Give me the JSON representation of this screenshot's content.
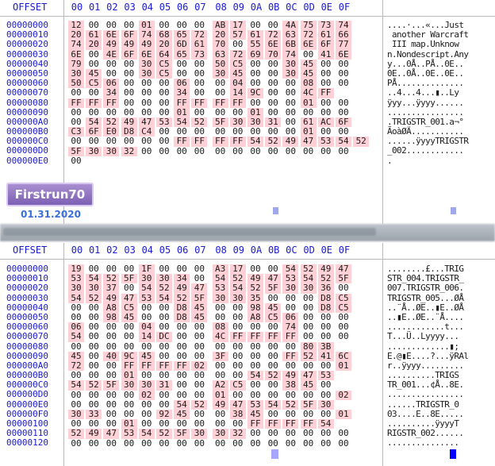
{
  "columns": {
    "offset_label": "OFFSET",
    "hex": [
      "00",
      "01",
      "02",
      "03",
      "04",
      "05",
      "06",
      "07",
      "08",
      "09",
      "0A",
      "0B",
      "0C",
      "0D",
      "0E",
      "0F"
    ]
  },
  "badge": {
    "text": "Firstrun70"
  },
  "date": "01.31.2020",
  "panels": [
    {
      "offsets": [
        "00000000",
        "00000010",
        "00000020",
        "00000030",
        "00000040",
        "00000050",
        "00000060",
        "00000070",
        "00000080",
        "00000090",
        "000000A0",
        "000000B0",
        "000000C0",
        "000000D0",
        "000000E0"
      ],
      "hex_rows": [
        "12 00 00 00 01 00 00 00 AB 17 00 00 4A 75 73 74",
        "20 61 6E 6F 74 68 65 72 20 57 61 72 63 72 61 66",
        "74 20 49 49 49 20 6D 61 70 00 55 6E 6B 6E 6F 77",
        "6E 00 4E 6F 6E 64 65 73 63 72 69 70 74 00 41 6E",
        "79 00 00 00 30 C5 00 00 50 C5 00 00 30 45 00 00",
        "30 45 00 00 30 C5 00 00 30 45 00 00 30 45 00 00",
        "50 C5 06 00 00 00 06 00 00 04 00 00 00 08 00 00",
        "00 00 34 00 00 00 34 00 00 14 9C 00 00 4C FF",
        "FF FF FF 00 00 00 FF FF FF FF 00 00 00 01 00 00",
        "00 00 00 00 00 00 01 00 00 00 01 00 00 00 00 00",
        "00 54 52 49 47 53 54 52 5F 30 30 31 00 61 AC 6F",
        "C3 6F E0 D8 C4 00 00 00 00 00 00 00 00 01 00 00",
        "00 00 00 00 00 00 FF FF FF FF 54 52 49 47 53 54 52",
        "5F 30 30 32 00 00 00 00 00 00 00 00 00 00 00 00",
        "00"
      ],
      "ascii_rows": [
        "....·...«...Just",
        " another Warcraft",
        " III map.Unknow",
        "n.Nondescript.Any",
        "y...0Å..PÅ..0E..",
        "0E..0Å..0E..0E..",
        "PÅ..............",
        "..4...4...▮..Ly",
        "ÿyy...ÿyyy......",
        "................",
        ".TRIGSTR_001.a¬°",
        "ÃoàØÄ...........",
        "......ÿyyyTRIGSTR",
        "_002............",
        "."
      ]
    },
    {
      "offsets": [
        "00000000",
        "00000010",
        "00000020",
        "00000030",
        "00000040",
        "00000050",
        "00000060",
        "00000070",
        "00000080",
        "00000090",
        "000000A0",
        "000000B0",
        "000000C0",
        "000000D0",
        "000000E0",
        "000000F0",
        "00000100",
        "00000110",
        "00000120"
      ],
      "hex_rows": [
        "19 00 00 00 1F 00 00 00 A3 17 00 00 54 52 49 47",
        "53 54 52 5F 30 30 34 00 54 52 49 47 53 54 52 5F",
        "30 30 37 00 54 52 49 47 53 54 52 5F 30 30 36 00",
        "54 52 49 47 53 54 52 5F 30 30 35 00 00 00 D8 C5",
        "00 00 A8 C5 00 00 D8 45 00 00 98 45 00 00 D8 C5",
        "00 00 98 45 00 00 D8 45 00 00 A8 C5 06 00 00 00",
        "06 00 00 00 04 00 00 00 08 00 00 00 74 00 00 00",
        "54 00 00 00 14 DC 00 00 4C FF FF FF FF 00 00 00",
        "00 00 00 00 00 00 00 00 00 00 00 00 00 80 3B",
        "45 00 40 9C 45 00 00 00 3F 00 00 00 FF 52 41 6C",
        "72 00 00 FF FF FF FF 02 00 00 00 00 00 00 00 01",
        "00 00 00 01 00 00 00 00 00 00 54 52 49 47 53",
        "54 52 5F 30 30 31 00 00 A2 C5 00 00 38 45 00",
        "00 00 00 00 02 00 00 00 01 00 00 00 00 00 00 02",
        "00 00 00 00 00 00 54 52 49 47 53 54 52 5F 30",
        "30 33 00 00 00 92 45 00 00 38 45 00 00 00 00 01",
        "00 00 00 01 00 00 00 00 00 00 FF FF FF FF 54",
        "52 49 47 53 54 52 5F 30 30 32 00 00 00 00 00 00",
        "00 00 00 00 00 00 00 00 00 00 00 00 00 00 00 00"
      ],
      "ascii_rows": [
        "........£...TRIG",
        "STR_004.TRIGSTR_",
        "007.TRIGSTR_006.",
        "TRIGSTR_005...ØÅ",
        "..¨Å..ØE..▮E..ØÅ",
        "..▮E..ØE..¨Å....",
        "............t...",
        "T...Ü..Lyyyy...",
        ".............▮;",
        "E.@▮E....?...ÿRAl",
        "r..ÿyyy.........",
        "..........TRIGS",
        "TR_001...¢Å..8E.",
        "................",
        "......TRIGSTR_0",
        "03....E..8E.....",
        "..........ÿyyyT",
        "RIGSTR_002......",
        "..............."
      ]
    }
  ]
}
